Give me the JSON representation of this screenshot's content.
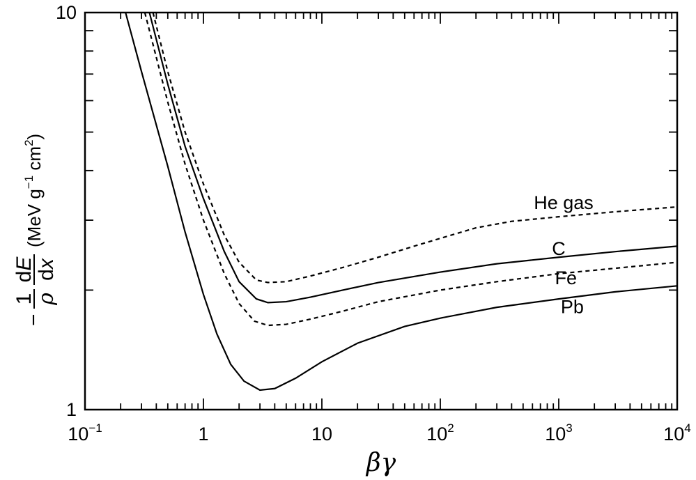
{
  "chart_data": {
    "type": "line",
    "xscale": "log",
    "yscale": "log",
    "xlim": [
      0.1,
      10000
    ],
    "ylim": [
      1,
      10
    ],
    "grid": false,
    "xlabel": {
      "beta": "β",
      "gamma": "γ"
    },
    "ylabel": {
      "minus": "−",
      "num1": "1",
      "den1": "ρ",
      "num2_d": "d",
      "num2_e": "E",
      "den2_d": "d",
      "den2_x": "x",
      "units_open": "(MeV g",
      "units_exp1": "−1",
      "units_mid": " cm",
      "units_exp2": "2",
      "units_close": ")"
    },
    "x_ticks": [
      {
        "value": 0.1,
        "base": "10",
        "exp": "−1"
      },
      {
        "value": 1,
        "base": "1",
        "exp": ""
      },
      {
        "value": 10,
        "base": "10",
        "exp": ""
      },
      {
        "value": 100,
        "base": "10",
        "exp": "2"
      },
      {
        "value": 1000,
        "base": "10",
        "exp": "3"
      },
      {
        "value": 10000,
        "base": "10",
        "exp": "4"
      }
    ],
    "y_ticks": [
      {
        "value": 1,
        "label": "1"
      },
      {
        "value": 10,
        "label": "10"
      }
    ],
    "series": [
      {
        "name": "He gas",
        "style": "dashed",
        "label_at": [
          1100,
          3.2
        ],
        "points": [
          [
            0.375,
            10
          ],
          [
            0.5,
            7.1
          ],
          [
            0.7,
            5.0
          ],
          [
            1.0,
            3.7
          ],
          [
            1.5,
            2.75
          ],
          [
            2.0,
            2.35
          ],
          [
            2.8,
            2.12
          ],
          [
            3.5,
            2.09
          ],
          [
            5,
            2.1
          ],
          [
            8,
            2.17
          ],
          [
            15,
            2.28
          ],
          [
            30,
            2.42
          ],
          [
            60,
            2.58
          ],
          [
            100,
            2.7
          ],
          [
            200,
            2.87
          ],
          [
            400,
            2.98
          ],
          [
            1000,
            3.06
          ],
          [
            3000,
            3.15
          ],
          [
            10000,
            3.24
          ]
        ]
      },
      {
        "name": "C",
        "style": "solid",
        "label_at": [
          1000,
          2.45
        ],
        "points": [
          [
            0.35,
            10
          ],
          [
            0.5,
            6.6
          ],
          [
            0.7,
            4.6
          ],
          [
            1.0,
            3.4
          ],
          [
            1.5,
            2.5
          ],
          [
            2.0,
            2.1
          ],
          [
            2.8,
            1.9
          ],
          [
            3.5,
            1.86
          ],
          [
            5,
            1.87
          ],
          [
            8,
            1.92
          ],
          [
            15,
            2.0
          ],
          [
            30,
            2.09
          ],
          [
            100,
            2.22
          ],
          [
            300,
            2.33
          ],
          [
            1000,
            2.42
          ],
          [
            3000,
            2.5
          ],
          [
            10000,
            2.58
          ]
        ]
      },
      {
        "name": "Fe",
        "style": "dashed",
        "label_at": [
          1150,
          2.07
        ],
        "points": [
          [
            0.32,
            10
          ],
          [
            0.5,
            5.95
          ],
          [
            0.7,
            4.15
          ],
          [
            1.0,
            3.0
          ],
          [
            1.5,
            2.2
          ],
          [
            2.0,
            1.85
          ],
          [
            2.7,
            1.67
          ],
          [
            3.5,
            1.63
          ],
          [
            5,
            1.64
          ],
          [
            8,
            1.69
          ],
          [
            15,
            1.77
          ],
          [
            30,
            1.87
          ],
          [
            100,
            2.0
          ],
          [
            300,
            2.1
          ],
          [
            1000,
            2.2
          ],
          [
            3000,
            2.27
          ],
          [
            10000,
            2.35
          ]
        ]
      },
      {
        "name": "Pb",
        "style": "solid",
        "label_at": [
          1300,
          1.75
        ],
        "points": [
          [
            0.22,
            10
          ],
          [
            0.3,
            7.1
          ],
          [
            0.5,
            4.1
          ],
          [
            0.7,
            2.8
          ],
          [
            1.0,
            1.95
          ],
          [
            1.3,
            1.55
          ],
          [
            1.7,
            1.3
          ],
          [
            2.2,
            1.18
          ],
          [
            3.0,
            1.12
          ],
          [
            4,
            1.13
          ],
          [
            6,
            1.2
          ],
          [
            10,
            1.32
          ],
          [
            20,
            1.47
          ],
          [
            50,
            1.62
          ],
          [
            100,
            1.7
          ],
          [
            300,
            1.81
          ],
          [
            1000,
            1.9
          ],
          [
            3000,
            1.98
          ],
          [
            10000,
            2.05
          ]
        ]
      }
    ]
  }
}
